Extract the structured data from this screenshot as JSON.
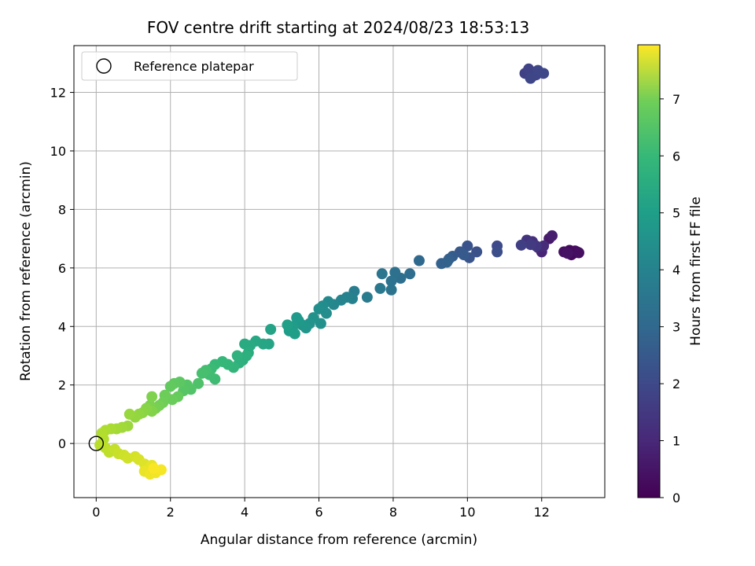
{
  "chart_data": {
    "type": "scatter",
    "title": "FOV centre drift starting at 2024/08/23 18:53:13",
    "xlabel": "Angular distance from reference (arcmin)",
    "ylabel": "Rotation from reference (arcmin)",
    "xlim": [
      -0.6,
      13.7
    ],
    "ylim": [
      -1.85,
      13.6
    ],
    "x_ticks": [
      0,
      2,
      4,
      6,
      8,
      10,
      12
    ],
    "y_ticks": [
      0,
      2,
      4,
      6,
      8,
      10,
      12
    ],
    "grid": true,
    "legend": {
      "placement": "top-left",
      "entries": [
        "Reference platepar"
      ]
    },
    "reference_point": {
      "x": 0,
      "y": 0,
      "label": "Reference platepar"
    },
    "colorbar": {
      "label": "Hours from first FF file",
      "colormap": "viridis",
      "range": [
        0,
        7.95
      ],
      "ticks": [
        0,
        1,
        2,
        3,
        4,
        5,
        6,
        7
      ]
    },
    "points": [
      [
        12.95,
        6.55,
        0.05
      ],
      [
        12.85,
        6.5,
        0.1
      ],
      [
        12.75,
        6.6,
        0.15
      ],
      [
        12.8,
        6.45,
        0.2
      ],
      [
        12.9,
        6.58,
        0.25
      ],
      [
        13.0,
        6.52,
        0.3
      ],
      [
        12.6,
        6.55,
        0.35
      ],
      [
        12.7,
        6.5,
        0.4
      ],
      [
        12.2,
        7.0,
        0.55
      ],
      [
        12.28,
        7.1,
        0.65
      ],
      [
        12.0,
        6.55,
        0.8
      ],
      [
        11.9,
        6.7,
        0.9
      ],
      [
        12.05,
        6.75,
        1.0
      ],
      [
        11.75,
        6.9,
        1.1
      ],
      [
        11.6,
        6.95,
        1.2
      ],
      [
        11.85,
        6.75,
        1.3
      ],
      [
        11.7,
        6.8,
        1.4
      ],
      [
        11.45,
        6.78,
        1.5
      ],
      [
        11.55,
        12.65,
        1.55
      ],
      [
        11.65,
        12.8,
        1.6
      ],
      [
        11.75,
        12.55,
        1.62
      ],
      [
        11.85,
        12.6,
        1.65
      ],
      [
        11.7,
        12.48,
        1.68
      ],
      [
        12.05,
        12.65,
        1.7
      ],
      [
        11.9,
        12.75,
        1.72
      ],
      [
        10.8,
        6.75,
        1.8
      ],
      [
        10.8,
        6.55,
        1.9
      ],
      [
        10.25,
        6.55,
        2.0
      ],
      [
        10.0,
        6.75,
        2.05
      ],
      [
        10.05,
        6.35,
        2.1
      ],
      [
        9.8,
        6.55,
        2.2
      ],
      [
        9.9,
        6.45,
        2.25
      ],
      [
        9.6,
        6.4,
        2.35
      ],
      [
        9.5,
        6.3,
        2.4
      ],
      [
        9.3,
        6.15,
        2.45
      ],
      [
        9.45,
        6.2,
        2.5
      ],
      [
        8.7,
        6.25,
        2.7
      ],
      [
        8.45,
        5.8,
        2.85
      ],
      [
        8.2,
        5.65,
        2.9
      ],
      [
        8.05,
        5.85,
        2.95
      ],
      [
        7.95,
        5.55,
        3.0
      ],
      [
        7.95,
        5.25,
        3.05
      ],
      [
        7.7,
        5.8,
        3.1
      ],
      [
        7.65,
        5.3,
        3.2
      ],
      [
        7.3,
        5.0,
        3.3
      ],
      [
        6.95,
        5.2,
        3.4
      ],
      [
        6.9,
        4.95,
        3.5
      ],
      [
        6.75,
        5.0,
        3.55
      ],
      [
        6.6,
        4.9,
        3.6
      ],
      [
        6.4,
        4.75,
        3.7
      ],
      [
        6.25,
        4.85,
        3.75
      ],
      [
        6.1,
        4.7,
        3.85
      ],
      [
        6.2,
        4.45,
        3.9
      ],
      [
        6.0,
        4.6,
        3.95
      ],
      [
        6.05,
        4.1,
        4.0
      ],
      [
        5.85,
        4.3,
        4.05
      ],
      [
        5.75,
        4.1,
        4.1
      ],
      [
        5.65,
        3.95,
        4.15
      ],
      [
        5.55,
        4.05,
        4.2
      ],
      [
        5.45,
        4.2,
        4.25
      ],
      [
        5.4,
        4.3,
        4.3
      ],
      [
        5.3,
        4.0,
        4.35
      ],
      [
        5.2,
        3.85,
        4.4
      ],
      [
        5.35,
        3.75,
        4.45
      ],
      [
        5.15,
        4.05,
        4.5
      ],
      [
        4.7,
        3.9,
        4.6
      ],
      [
        4.65,
        3.4,
        4.65
      ],
      [
        4.5,
        3.4,
        4.7
      ],
      [
        4.3,
        3.5,
        4.75
      ],
      [
        4.15,
        3.35,
        4.8
      ],
      [
        4.0,
        3.4,
        4.85
      ],
      [
        4.1,
        3.1,
        4.9
      ],
      [
        3.95,
        2.85,
        4.95
      ],
      [
        4.05,
        3.0,
        5.0
      ],
      [
        3.85,
        2.75,
        5.05
      ],
      [
        3.8,
        3.0,
        5.1
      ],
      [
        3.7,
        2.6,
        5.2
      ],
      [
        3.55,
        2.7,
        5.25
      ],
      [
        3.4,
        2.8,
        5.3
      ],
      [
        3.2,
        2.7,
        5.35
      ],
      [
        3.1,
        2.55,
        5.4
      ],
      [
        3.2,
        2.2,
        5.45
      ],
      [
        3.05,
        2.35,
        5.5
      ],
      [
        2.95,
        2.5,
        5.55
      ],
      [
        2.85,
        2.4,
        5.6
      ],
      [
        2.75,
        2.05,
        5.7
      ],
      [
        2.55,
        1.85,
        5.75
      ],
      [
        2.45,
        2.0,
        5.8
      ],
      [
        2.35,
        1.8,
        5.85
      ],
      [
        2.25,
        2.1,
        5.9
      ],
      [
        2.1,
        2.05,
        5.95
      ],
      [
        2.0,
        1.95,
        6.0
      ],
      [
        2.2,
        1.6,
        6.05
      ],
      [
        2.05,
        1.5,
        6.1
      ],
      [
        1.85,
        1.65,
        6.15
      ],
      [
        1.8,
        1.4,
        6.2
      ],
      [
        1.7,
        1.3,
        6.25
      ],
      [
        1.6,
        1.2,
        6.3
      ],
      [
        1.45,
        1.3,
        6.35
      ],
      [
        1.5,
        1.6,
        6.4
      ],
      [
        1.5,
        1.1,
        6.45
      ],
      [
        1.35,
        1.2,
        6.5
      ],
      [
        1.25,
        1.05,
        6.55
      ],
      [
        1.15,
        1.0,
        6.6
      ],
      [
        1.05,
        0.9,
        6.65
      ],
      [
        0.9,
        1.0,
        6.7
      ],
      [
        0.85,
        0.6,
        6.75
      ],
      [
        0.7,
        0.55,
        6.8
      ],
      [
        0.55,
        0.5,
        6.85
      ],
      [
        0.4,
        0.5,
        6.9
      ],
      [
        0.25,
        0.45,
        6.95
      ],
      [
        0.15,
        0.35,
        7.0
      ],
      [
        0.2,
        0.15,
        7.05
      ],
      [
        0.1,
        -0.05,
        7.1
      ],
      [
        0.25,
        -0.15,
        7.15
      ],
      [
        0.35,
        -0.3,
        7.2
      ],
      [
        0.5,
        -0.2,
        7.25
      ],
      [
        0.6,
        -0.35,
        7.3
      ],
      [
        0.75,
        -0.4,
        7.35
      ],
      [
        0.85,
        -0.5,
        7.4
      ],
      [
        1.05,
        -0.45,
        7.45
      ],
      [
        1.15,
        -0.55,
        7.5
      ],
      [
        1.3,
        -0.7,
        7.55
      ],
      [
        1.4,
        -0.85,
        7.6
      ],
      [
        1.5,
        -0.75,
        7.65
      ],
      [
        1.3,
        -0.95,
        7.7
      ],
      [
        1.45,
        -1.05,
        7.75
      ],
      [
        1.6,
        -1.0,
        7.8
      ],
      [
        1.75,
        -0.9,
        7.85
      ],
      [
        1.55,
        -0.85,
        7.9
      ]
    ]
  }
}
